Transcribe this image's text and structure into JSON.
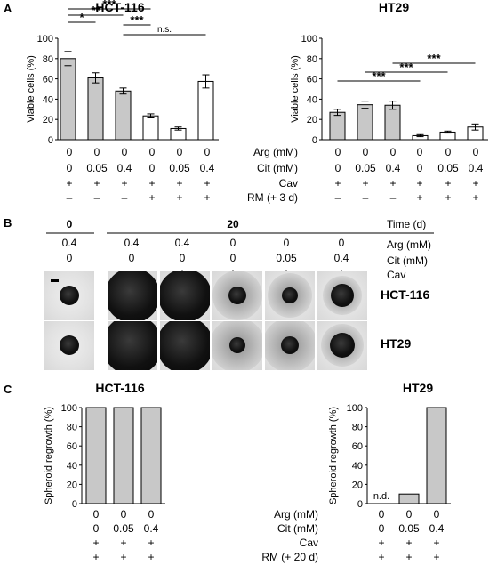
{
  "panels": {
    "A": "A",
    "B": "B",
    "C": "C"
  },
  "na_label": "n.d.",
  "panel_a": [
    {
      "title": "HCT-116",
      "ylabel": "Viable cells (%)",
      "ylim": [
        0,
        100
      ],
      "yticks": [
        0,
        20,
        40,
        60,
        80,
        100
      ],
      "values": [
        80,
        61,
        48,
        23.5,
        11,
        57.5
      ],
      "errors": [
        7,
        5,
        3,
        2,
        1.5,
        6.5
      ],
      "bar_colors": [
        "#c8c8c8",
        "#c8c8c8",
        "#c8c8c8",
        "#ffffff",
        "#ffffff",
        "#ffffff"
      ],
      "significance": [
        {
          "from": 0,
          "to": 3,
          "label": "***"
        },
        {
          "from": 0,
          "to": 2,
          "label": "**"
        },
        {
          "from": 0,
          "to": 1,
          "label": "*"
        },
        {
          "from": 2,
          "to": 3,
          "label": "***"
        },
        {
          "from": 2,
          "to": 5,
          "label": "n.s."
        }
      ]
    },
    {
      "title": "HT29",
      "ylabel": "Viable cells (%)",
      "ylim": [
        0,
        100
      ],
      "yticks": [
        0,
        20,
        40,
        60,
        80,
        100
      ],
      "values": [
        27,
        34.5,
        34,
        4,
        7.5,
        12.5
      ],
      "errors": [
        3,
        3.5,
        4,
        1,
        1,
        3
      ],
      "bar_colors": [
        "#c8c8c8",
        "#c8c8c8",
        "#c8c8c8",
        "#ffffff",
        "#ffffff",
        "#ffffff"
      ],
      "significance": [
        {
          "from": 2,
          "to": 5,
          "label": "***"
        },
        {
          "from": 1,
          "to": 4,
          "label": "***"
        },
        {
          "from": 0,
          "to": 3,
          "label": "***"
        }
      ]
    }
  ],
  "panel_a_conditions": [
    {
      "label": "Arg (mM)",
      "cells": [
        "0",
        "0",
        "0",
        "0",
        "0",
        "0"
      ]
    },
    {
      "label": "Cit (mM)",
      "cells": [
        "0",
        "0.05",
        "0.4",
        "0",
        "0.05",
        "0.4"
      ]
    },
    {
      "label": "Cav",
      "cells": [
        "+",
        "+",
        "+",
        "+",
        "+",
        "+"
      ]
    },
    {
      "label": "RM (+ 3 d)",
      "cells": [
        "–",
        "–",
        "–",
        "+",
        "+",
        "+"
      ]
    }
  ],
  "panel_b": {
    "time_groups": [
      "0",
      "20"
    ],
    "time_label": "Time (d)",
    "rows": [
      {
        "label": "Arg (mM)",
        "cells": [
          "0.4",
          "0.4",
          "0.4",
          "0",
          "0",
          "0"
        ]
      },
      {
        "label": "Cit (mM)",
        "cells": [
          "0",
          "0",
          "0",
          "0",
          "0.05",
          "0.4"
        ]
      },
      {
        "label": "Cav",
        "cells": [
          "–",
          "–",
          "+",
          "+",
          "+",
          "+"
        ]
      }
    ],
    "cell_lines": [
      "HCT-116",
      "HT29"
    ]
  },
  "panel_c": [
    {
      "title": "HCT-116",
      "ylabel": "Spheroid regrowth (%)",
      "ylim": [
        0,
        100
      ],
      "yticks": [
        0,
        20,
        40,
        60,
        80,
        100
      ],
      "values": [
        100,
        100,
        100
      ],
      "bar_color": "#c8c8c8"
    },
    {
      "title": "HT29",
      "ylabel": "Spheroid regrowth (%)",
      "ylim": [
        0,
        100
      ],
      "yticks": [
        0,
        20,
        40,
        60,
        80,
        100
      ],
      "values": [
        null,
        10,
        100
      ],
      "bar_color": "#c8c8c8"
    }
  ],
  "panel_c_conditions": [
    {
      "label": "Arg (mM)",
      "cells": [
        "0",
        "0",
        "0"
      ]
    },
    {
      "label": "Cit (mM)",
      "cells": [
        "0",
        "0.05",
        "0.4"
      ]
    },
    {
      "label": "Cav",
      "cells": [
        "+",
        "+",
        "+"
      ]
    },
    {
      "label": "RM (+ 20 d)",
      "cells": [
        "+",
        "+",
        "+"
      ]
    }
  ],
  "chart_data": [
    {
      "type": "bar",
      "title": "HCT-116",
      "ylabel": "Viable cells (%)",
      "ylim": [
        0,
        100
      ],
      "categories": [
        "0/0/+/–",
        "0/0.05/+/–",
        "0/0.4/+/–",
        "0/0/+/+",
        "0/0.05/+/+",
        "0/0.4/+/+"
      ],
      "values": [
        80,
        61,
        48,
        23.5,
        11,
        57.5
      ],
      "errors": [
        7,
        5,
        3,
        2,
        1.5,
        6.5
      ]
    },
    {
      "type": "bar",
      "title": "HT29",
      "ylabel": "Viable cells (%)",
      "ylim": [
        0,
        100
      ],
      "categories": [
        "0/0/+/–",
        "0/0.05/+/–",
        "0/0.4/+/–",
        "0/0/+/+",
        "0/0.05/+/+",
        "0/0.4/+/+"
      ],
      "values": [
        27,
        34.5,
        34,
        4,
        7.5,
        12.5
      ],
      "errors": [
        3,
        3.5,
        4,
        1,
        1,
        3
      ]
    },
    {
      "type": "bar",
      "title": "HCT-116",
      "ylabel": "Spheroid regrowth (%)",
      "ylim": [
        0,
        100
      ],
      "categories": [
        "0/0/+/+",
        "0/0.05/+/+",
        "0/0.4/+/+"
      ],
      "values": [
        100,
        100,
        100
      ]
    },
    {
      "type": "bar",
      "title": "HT29",
      "ylabel": "Spheroid regrowth (%)",
      "ylim": [
        0,
        100
      ],
      "categories": [
        "0/0/+/+",
        "0/0.05/+/+",
        "0/0.4/+/+"
      ],
      "values": [
        null,
        10,
        100
      ]
    }
  ]
}
